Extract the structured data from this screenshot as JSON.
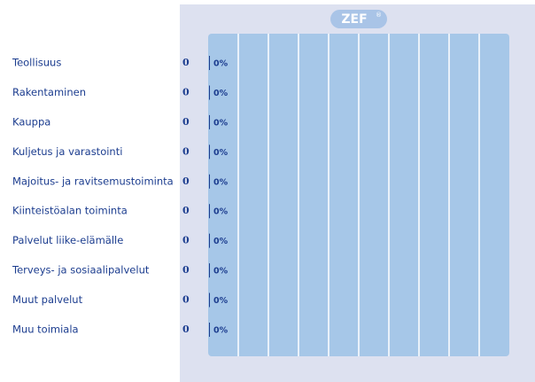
{
  "chart_data": {
    "type": "bar",
    "orientation": "horizontal",
    "logo": "ZEF",
    "logo_mark": "®",
    "categories": [
      "Teollisuus",
      "Rakentaminen",
      "Kauppa",
      "Kuljetus ja varastointi",
      "Majoitus- ja ravitsemustoiminta",
      "Kiinteistöalan toiminta",
      "Palvelut liike-elämälle",
      "Terveys- ja sosiaalipalvelut",
      "Muut palvelut",
      "Muu toimiala"
    ],
    "counts": [
      0,
      0,
      0,
      0,
      0,
      0,
      0,
      0,
      0,
      0
    ],
    "values": [
      0,
      0,
      0,
      0,
      0,
      0,
      0,
      0,
      0,
      0
    ],
    "value_labels": [
      "0%",
      "0%",
      "0%",
      "0%",
      "0%",
      "0%",
      "0%",
      "0%",
      "0%",
      "0%"
    ],
    "color": "#1c3d8f",
    "xlim": [
      0,
      100
    ],
    "xticks": [
      0,
      10,
      20,
      30,
      40,
      50,
      60,
      70,
      80,
      90,
      100
    ],
    "grid": true
  }
}
